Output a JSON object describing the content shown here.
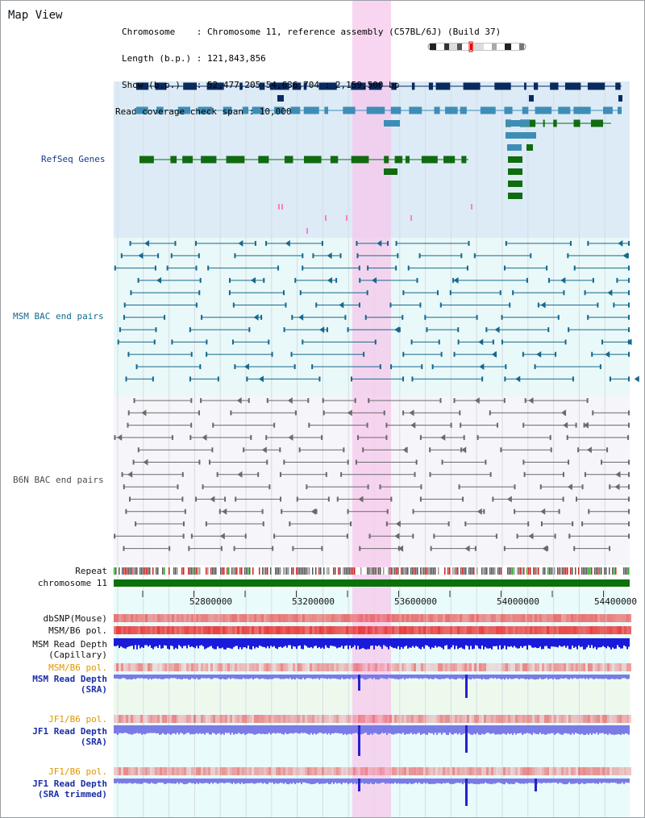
{
  "map": {
    "title": "Map View",
    "info_lines": [
      "Chromosome    : Chromosome 11, reference assembly (C57BL/6J) (Build 37)",
      "Length (b.p.) : 121,843,856",
      "Show (b.p.)   : 52,477,205-54,636,704 : 2,159,500 bp",
      "Read coverage check span : 10,000"
    ]
  },
  "tracks": {
    "refseq": "RefSeq Genes",
    "msm_bac": "MSM BAC end pairs",
    "b6n_bac": "B6N BAC end pairs",
    "repeat": "Repeat",
    "chromosome": "chromosome 11",
    "dbsnp": "dbSNP(Mouse)",
    "msm_b6_pol_1": "MSM/B6 pol.",
    "msm_depth_cap_1": "MSM Read Depth",
    "msm_depth_cap_2": "(Capillary)",
    "msm_b6_pol_2": "MSM/B6 pol.",
    "msm_depth_sra_1": "MSM Read Depth",
    "msm_depth_sra_2": "(SRA)",
    "jf1_pol_1": "JF1/B6 pol.",
    "jf1_depth_sra_1": "JF1 Read Depth",
    "jf1_depth_sra_2": "(SRA)",
    "jf1_pol_2": "JF1/B6 pol.",
    "jf1_depth_trim_1": "JF1 Read Depth",
    "jf1_depth_trim_2": "(SRA trimmed)"
  },
  "axis": {
    "ticks": [
      "52800000",
      "53200000",
      "53600000",
      "54000000",
      "54400000"
    ]
  },
  "colors": {
    "refseq_bg": "#dcebf6",
    "bac_bg": "#e9f8f8",
    "highlight": "#f5c8ec",
    "navy": "#0a2a5e",
    "refseq_blue": "#3e8db7",
    "refseq_green": "#116b11",
    "bac_teal": "#15688e",
    "bac_grey": "#6a6a6a",
    "chromosome_green": "#0b720b",
    "depth_blue": "#1a1adb",
    "depth_periwinkle": "#7b7be6",
    "snp_red": "#e83c3c"
  }
}
